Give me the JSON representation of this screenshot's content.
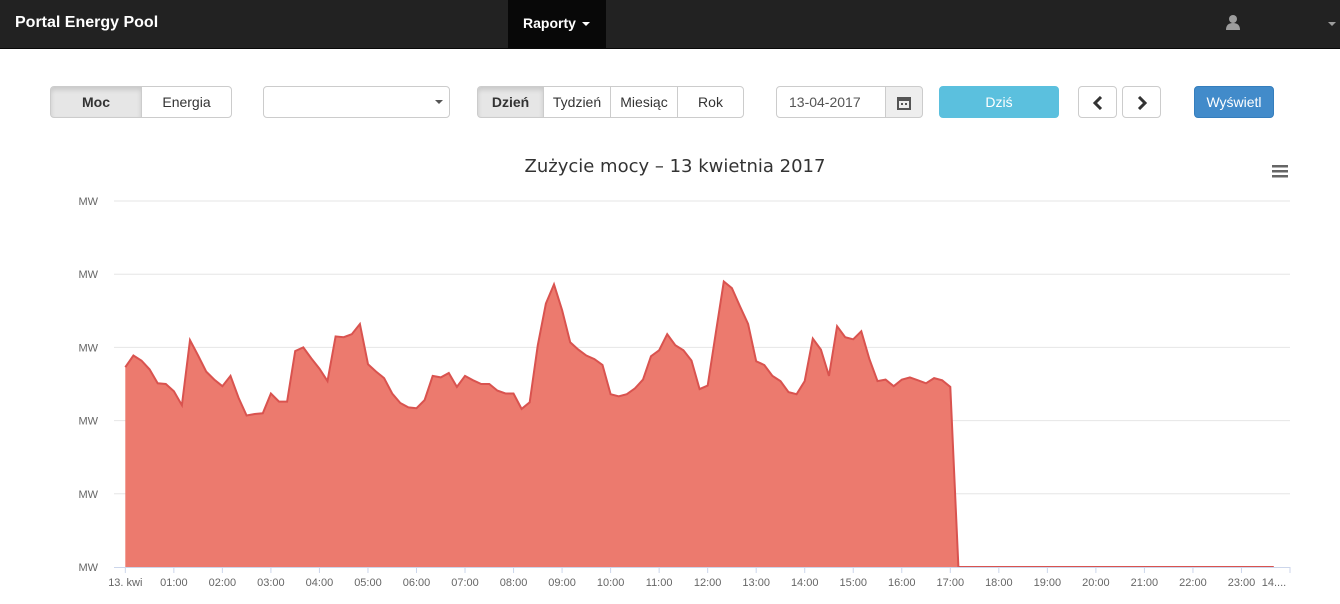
{
  "ui": {
    "brand": "Portal Energy Pool",
    "menu": "Raporty",
    "mode_buttons": [
      "Moc",
      "Energia"
    ],
    "period_buttons": [
      "Dzień",
      "Tydzień",
      "Miesiąc",
      "Rok"
    ],
    "date": "13-04-2017",
    "today_button": "Dziś",
    "show_button": "Wyświetl"
  },
  "chart_data": {
    "type": "area",
    "title": "Zużycie mocy – 13 kwietnia 2017",
    "color": "#ec7a6e",
    "line_color": "#d9534f",
    "grid": true,
    "xlim": [
      -14,
      1440
    ],
    "xticks": [
      {
        "value": 0,
        "label": "13. kwi"
      },
      {
        "value": 60,
        "label": "01:00"
      },
      {
        "value": 120,
        "label": "02:00"
      },
      {
        "value": 180,
        "label": "03:00"
      },
      {
        "value": 240,
        "label": "04:00"
      },
      {
        "value": 300,
        "label": "05:00"
      },
      {
        "value": 360,
        "label": "06:00"
      },
      {
        "value": 420,
        "label": "07:00"
      },
      {
        "value": 480,
        "label": "08:00"
      },
      {
        "value": 540,
        "label": "09:00"
      },
      {
        "value": 600,
        "label": "10:00"
      },
      {
        "value": 660,
        "label": "11:00"
      },
      {
        "value": 720,
        "label": "12:00"
      },
      {
        "value": 780,
        "label": "13:00"
      },
      {
        "value": 840,
        "label": "14:00"
      },
      {
        "value": 900,
        "label": "15:00"
      },
      {
        "value": 960,
        "label": "16:00"
      },
      {
        "value": 1020,
        "label": "17:00"
      },
      {
        "value": 1080,
        "label": "18:00"
      },
      {
        "value": 1140,
        "label": "19:00"
      },
      {
        "value": 1200,
        "label": "20:00"
      },
      {
        "value": 1260,
        "label": "21:00"
      },
      {
        "value": 1320,
        "label": "22:00"
      },
      {
        "value": 1380,
        "label": "23:00"
      },
      {
        "value": 1440,
        "label": "14...."
      }
    ],
    "ylim": [
      0,
      5
    ],
    "yticks": [
      {
        "value": 0,
        "label": "MW"
      },
      {
        "value": 1,
        "label": "MW"
      },
      {
        "value": 2,
        "label": "MW"
      },
      {
        "value": 3,
        "label": "MW"
      },
      {
        "value": 4,
        "label": "MW"
      },
      {
        "value": 5,
        "label": "MW"
      }
    ],
    "x": [
      0,
      10,
      20,
      30,
      40,
      50,
      60,
      70,
      80,
      90,
      100,
      110,
      120,
      130,
      140,
      150,
      160,
      170,
      180,
      190,
      200,
      210,
      220,
      230,
      240,
      250,
      260,
      270,
      280,
      290,
      300,
      310,
      320,
      330,
      340,
      350,
      360,
      370,
      380,
      390,
      400,
      410,
      420,
      430,
      440,
      450,
      460,
      470,
      480,
      490,
      500,
      510,
      520,
      530,
      540,
      550,
      560,
      570,
      580,
      590,
      600,
      610,
      620,
      630,
      640,
      650,
      660,
      670,
      680,
      690,
      700,
      710,
      720,
      730,
      740,
      750,
      760,
      770,
      780,
      790,
      800,
      810,
      820,
      830,
      840,
      850,
      860,
      870,
      880,
      890,
      900,
      910,
      920,
      930,
      940,
      950,
      960,
      970,
      980,
      990,
      1000,
      1010,
      1020,
      1030,
      1420
    ],
    "values": [
      2.73,
      2.89,
      2.82,
      2.7,
      2.51,
      2.5,
      2.4,
      2.21,
      3.1,
      2.89,
      2.67,
      2.56,
      2.47,
      2.61,
      2.31,
      2.07,
      2.09,
      2.1,
      2.37,
      2.26,
      2.26,
      2.95,
      3.0,
      2.85,
      2.71,
      2.54,
      3.15,
      3.14,
      3.18,
      3.32,
      2.77,
      2.67,
      2.58,
      2.37,
      2.24,
      2.18,
      2.17,
      2.28,
      2.61,
      2.59,
      2.65,
      2.46,
      2.61,
      2.55,
      2.5,
      2.5,
      2.41,
      2.37,
      2.37,
      2.16,
      2.25,
      3.03,
      3.6,
      3.86,
      3.51,
      3.07,
      2.97,
      2.89,
      2.84,
      2.76,
      2.36,
      2.33,
      2.36,
      2.44,
      2.56,
      2.88,
      2.96,
      3.18,
      3.03,
      2.96,
      2.82,
      2.43,
      2.48,
      3.19,
      3.9,
      3.81,
      3.56,
      3.32,
      2.81,
      2.76,
      2.61,
      2.54,
      2.39,
      2.36,
      2.54,
      3.12,
      2.97,
      2.61,
      3.29,
      3.14,
      3.11,
      3.22,
      2.84,
      2.54,
      2.56,
      2.47,
      2.56,
      2.59,
      2.55,
      2.51,
      2.58,
      2.55,
      2.46,
      0,
      0
    ]
  }
}
